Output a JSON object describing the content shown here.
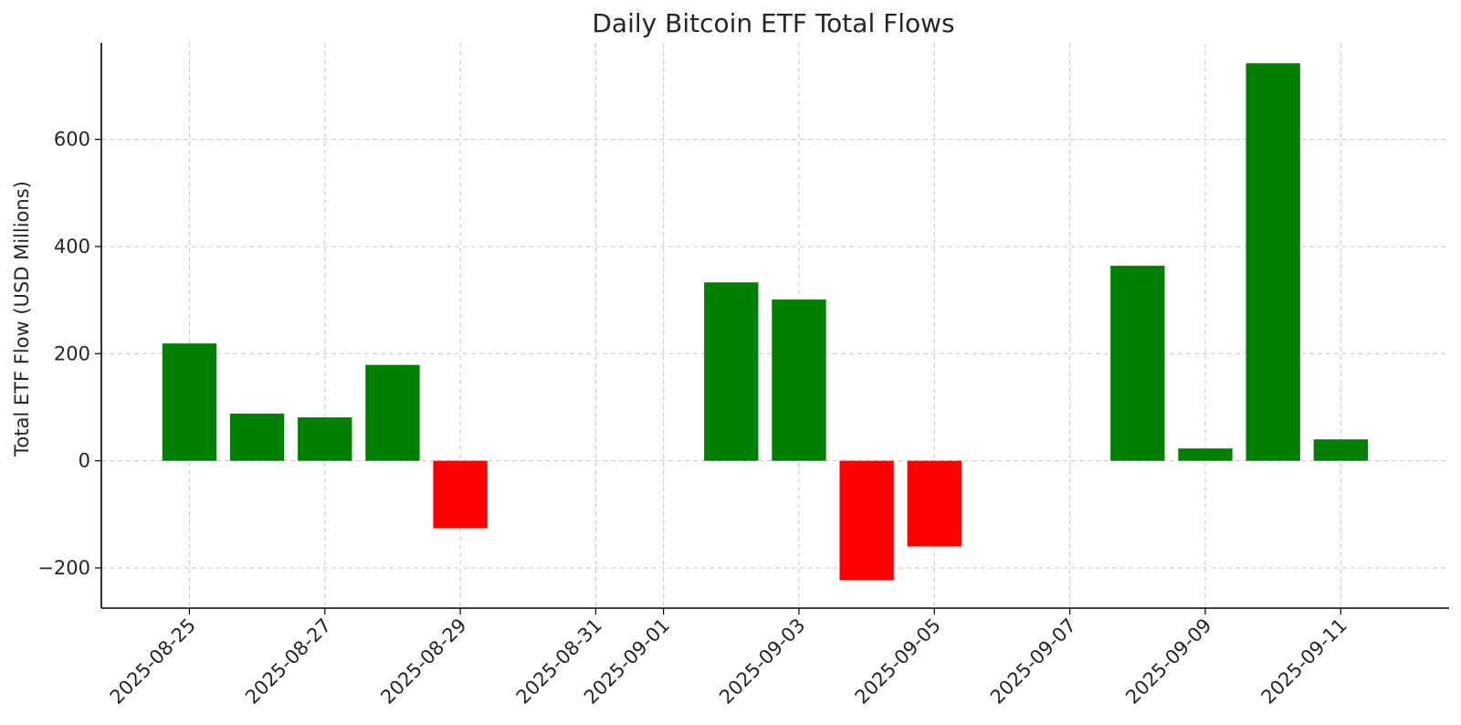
{
  "chart_data": {
    "type": "bar",
    "title": "Daily Bitcoin ETF Total Flows",
    "xlabel": "",
    "ylabel": "Total ETF Flow (USD Millions)",
    "ylim": [
      -275,
      780
    ],
    "xlim": [
      "2025-08-23.7",
      "2025-09-12.6"
    ],
    "y_ticks": [
      -200,
      0,
      200,
      400,
      600
    ],
    "y_tick_labels": [
      "−200",
      "0",
      "200",
      "400",
      "600"
    ],
    "x_ticks": [
      "2025-08-25",
      "2025-08-27",
      "2025-08-29",
      "2025-08-31",
      "2025-09-01",
      "2025-09-03",
      "2025-09-05",
      "2025-09-07",
      "2025-09-09",
      "2025-09-11"
    ],
    "grid": true,
    "positive_color": "#008000",
    "negative_color": "#ff0000",
    "categories": [
      "2025-08-25",
      "2025-08-26",
      "2025-08-27",
      "2025-08-28",
      "2025-08-29",
      "2025-09-02",
      "2025-09-03",
      "2025-09-04",
      "2025-09-05",
      "2025-09-08",
      "2025-09-09",
      "2025-09-10",
      "2025-09-11"
    ],
    "values": [
      219,
      88,
      81,
      179,
      -126,
      333,
      301,
      -223,
      -160,
      364,
      23,
      742,
      40
    ]
  }
}
